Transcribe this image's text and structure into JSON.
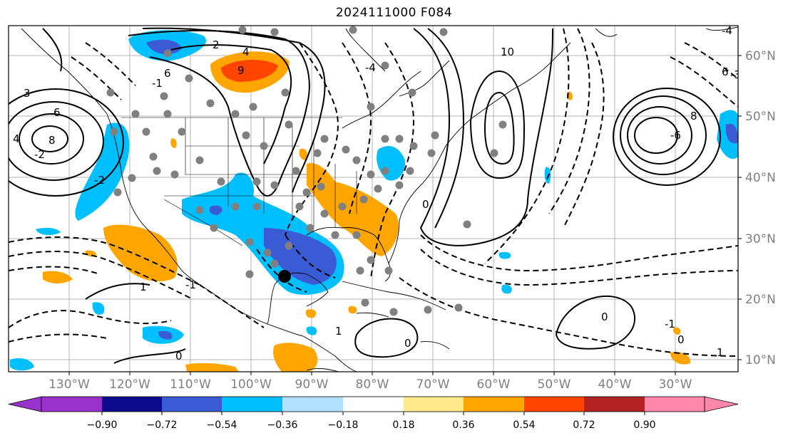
{
  "title": "2024111000 F084",
  "lon_labels": [
    "130°W",
    "120°W",
    "110°W",
    "100°W",
    "90°W",
    "80°W",
    "70°W",
    "60°W",
    "50°W",
    "40°W",
    "30°W"
  ],
  "lat_labels": [
    "60°N",
    "50°N",
    "40°N",
    "30°N",
    "20°N",
    "10°N"
  ],
  "colorbar": {
    "ticks": [
      "−0.90",
      "−0.72",
      "−0.54",
      "−0.36",
      "−0.18",
      "0.18",
      "0.36",
      "0.54",
      "0.72",
      "0.90"
    ],
    "colors": [
      "#9932cc",
      "#0a0a8a",
      "#3a5bd4",
      "#00bfff",
      "#b0e2ff",
      "#ffffff",
      "#ffe98a",
      "#ffa500",
      "#ff4500",
      "#b22222",
      "#ff88aa"
    ]
  },
  "contour_labels": [
    "2",
    "4",
    "6",
    "8",
    "10",
    "9",
    "3",
    "6",
    "8",
    "4",
    "0",
    "-1",
    "1",
    "-2",
    "-3",
    "-4",
    "0",
    "0",
    "0",
    "1",
    "-1",
    "-2",
    "-1",
    "-4",
    "-6",
    "6",
    "0",
    "1"
  ],
  "colors": {
    "blue": "#00bfff",
    "dark_blue": "#3a5bd4",
    "orange": "#ffa500",
    "red": "#ff4500",
    "light_blue": "#b0e2ff"
  }
}
